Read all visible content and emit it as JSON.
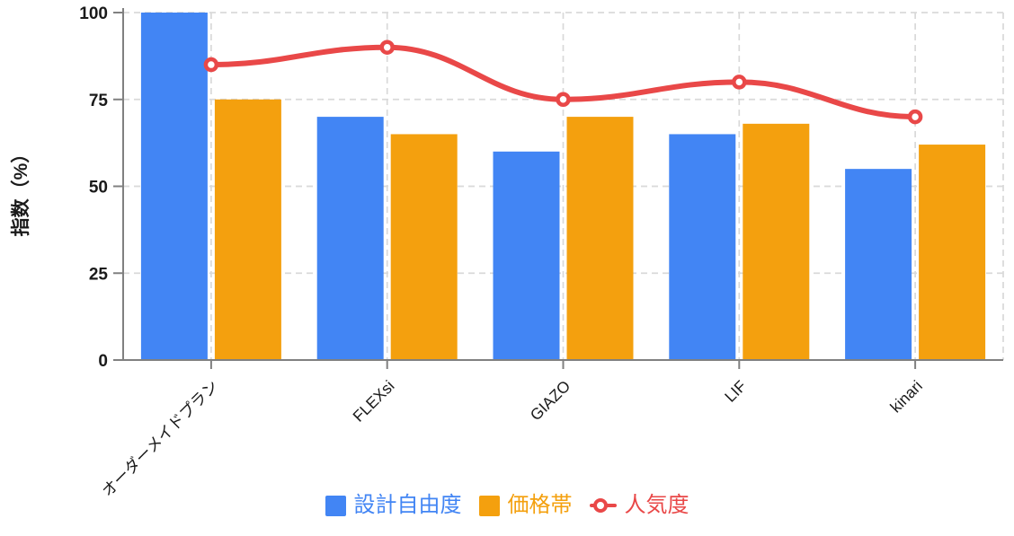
{
  "chart_data": {
    "type": "bar",
    "subtype": "grouped-bars-with-line-overlay",
    "categories": [
      "オーダーメイドプラン",
      "FLEXsi",
      "GIAZO",
      "LIF",
      "kinari"
    ],
    "series": [
      {
        "id": "design-freedom",
        "name": "設計自由度",
        "kind": "bar",
        "color": "#4285F4",
        "values": [
          100,
          70,
          60,
          65,
          55
        ]
      },
      {
        "id": "price-range",
        "name": "価格帯",
        "kind": "bar",
        "color": "#F4A00E",
        "values": [
          75,
          65,
          70,
          68,
          62
        ]
      },
      {
        "id": "popularity",
        "name": "人気度",
        "kind": "line",
        "color": "#E94848",
        "marker": "open-circle",
        "values": [
          85,
          90,
          75,
          80,
          70
        ]
      }
    ],
    "title": "",
    "xlabel": "",
    "ylabel": "指数（%）",
    "yticks": [
      0,
      25,
      50,
      75,
      100
    ],
    "ylim": [
      0,
      100
    ],
    "grid": "dashed",
    "grid_color": "#D9D9D9",
    "axis_color": "#808080",
    "tick_label_color": "#1A1A1A",
    "legend_position": "bottom",
    "x_tick_rotation_deg": 45
  }
}
